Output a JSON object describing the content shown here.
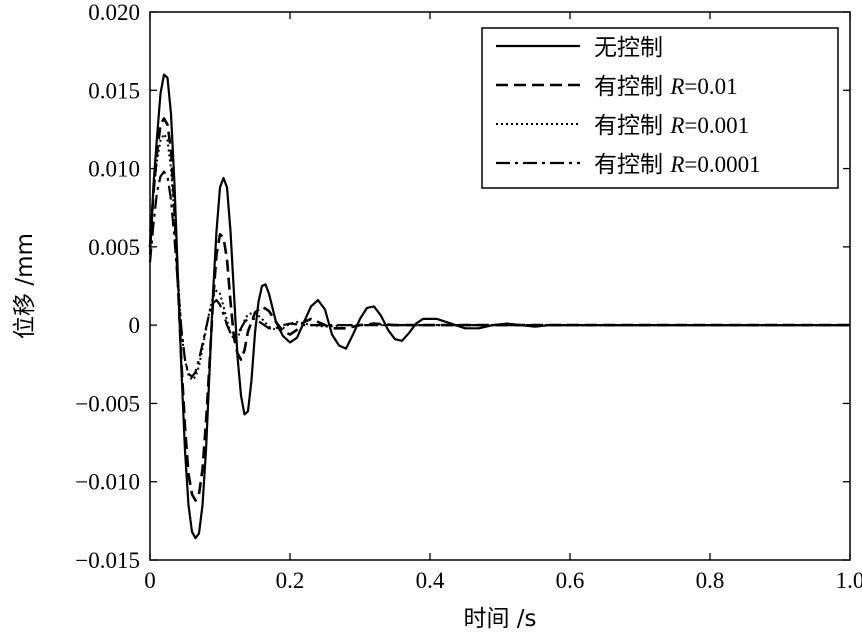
{
  "chart_data": {
    "type": "line",
    "xlabel": "时间 /s",
    "ylabel": "位移 /mm",
    "xlim": [
      0,
      1.0
    ],
    "ylim": [
      -0.015,
      0.02
    ],
    "x_ticks": [
      "0",
      "0.2",
      "0.4",
      "0.6",
      "0.8",
      "1.0"
    ],
    "y_ticks": [
      "0.020",
      "0.015",
      "0.010",
      "0.005",
      "0",
      "−0.005",
      "−0.010",
      "−0.015"
    ],
    "grid": false,
    "legend_position": "top-right",
    "series": [
      {
        "name": "无控制",
        "dash": "solid",
        "points": [
          [
            0,
            0.0045
          ],
          [
            0.005,
            0.009
          ],
          [
            0.01,
            0.012
          ],
          [
            0.015,
            0.0148
          ],
          [
            0.02,
            0.016
          ],
          [
            0.025,
            0.0158
          ],
          [
            0.03,
            0.0135
          ],
          [
            0.035,
            0.009
          ],
          [
            0.04,
            0.003
          ],
          [
            0.045,
            -0.003
          ],
          [
            0.05,
            -0.008
          ],
          [
            0.055,
            -0.0115
          ],
          [
            0.06,
            -0.0132
          ],
          [
            0.065,
            -0.0136
          ],
          [
            0.07,
            -0.0133
          ],
          [
            0.075,
            -0.0115
          ],
          [
            0.08,
            -0.008
          ],
          [
            0.085,
            -0.003
          ],
          [
            0.09,
            0.002
          ],
          [
            0.095,
            0.006
          ],
          [
            0.1,
            0.0088
          ],
          [
            0.105,
            0.0094
          ],
          [
            0.11,
            0.0088
          ],
          [
            0.115,
            0.006
          ],
          [
            0.12,
            0.002
          ],
          [
            0.125,
            -0.002
          ],
          [
            0.13,
            -0.0045
          ],
          [
            0.135,
            -0.0057
          ],
          [
            0.14,
            -0.0055
          ],
          [
            0.145,
            -0.0035
          ],
          [
            0.15,
            -0.0005
          ],
          [
            0.155,
            0.0015
          ],
          [
            0.16,
            0.0025
          ],
          [
            0.165,
            0.0026
          ],
          [
            0.17,
            0.002
          ],
          [
            0.18,
            0.0002
          ],
          [
            0.19,
            -0.0007
          ],
          [
            0.2,
            -0.0011
          ],
          [
            0.21,
            -0.0008
          ],
          [
            0.22,
            0.0002
          ],
          [
            0.23,
            0.0012
          ],
          [
            0.24,
            0.0016
          ],
          [
            0.25,
            0.001
          ],
          [
            0.26,
            -0.0006
          ],
          [
            0.27,
            -0.0013
          ],
          [
            0.28,
            -0.0015
          ],
          [
            0.29,
            -0.0006
          ],
          [
            0.3,
            0.0004
          ],
          [
            0.31,
            0.0011
          ],
          [
            0.32,
            0.0012
          ],
          [
            0.33,
            0.0006
          ],
          [
            0.34,
            -0.0003
          ],
          [
            0.35,
            -0.0009
          ],
          [
            0.36,
            -0.001
          ],
          [
            0.37,
            -0.0005
          ],
          [
            0.38,
            0.0001
          ],
          [
            0.39,
            0.0004
          ],
          [
            0.41,
            0.0004
          ],
          [
            0.43,
            0.0001
          ],
          [
            0.45,
            -0.0002
          ],
          [
            0.47,
            -0.0002
          ],
          [
            0.49,
            0
          ],
          [
            0.51,
            0.0001
          ],
          [
            0.53,
            0
          ],
          [
            0.55,
            -0.0001
          ],
          [
            0.57,
            0
          ],
          [
            0.6,
            0
          ],
          [
            0.65,
            0
          ],
          [
            0.7,
            0
          ],
          [
            0.8,
            0
          ],
          [
            0.9,
            0
          ],
          [
            1.0,
            0
          ]
        ]
      },
      {
        "name": "有控制 R=0.01",
        "dash": "12,6",
        "points": [
          [
            0,
            0.005
          ],
          [
            0.005,
            0.0085
          ],
          [
            0.01,
            0.011
          ],
          [
            0.015,
            0.0128
          ],
          [
            0.02,
            0.0132
          ],
          [
            0.025,
            0.0128
          ],
          [
            0.03,
            0.0112
          ],
          [
            0.035,
            0.0075
          ],
          [
            0.04,
            0.0025
          ],
          [
            0.045,
            -0.0025
          ],
          [
            0.05,
            -0.0065
          ],
          [
            0.055,
            -0.0095
          ],
          [
            0.06,
            -0.0108
          ],
          [
            0.065,
            -0.0112
          ],
          [
            0.07,
            -0.0108
          ],
          [
            0.075,
            -0.0092
          ],
          [
            0.08,
            -0.0062
          ],
          [
            0.085,
            -0.0025
          ],
          [
            0.09,
            0.0015
          ],
          [
            0.095,
            0.0045
          ],
          [
            0.1,
            0.0058
          ],
          [
            0.105,
            0.0056
          ],
          [
            0.11,
            0.0042
          ],
          [
            0.115,
            0.0015
          ],
          [
            0.12,
            -0.0008
          ],
          [
            0.125,
            -0.0018
          ],
          [
            0.13,
            -0.0022
          ],
          [
            0.135,
            -0.0016
          ],
          [
            0.14,
            -0.0004
          ],
          [
            0.15,
            0.0008
          ],
          [
            0.16,
            0.0012
          ],
          [
            0.17,
            0.0009
          ],
          [
            0.18,
            0.0002
          ],
          [
            0.19,
            -0.0004
          ],
          [
            0.2,
            -0.0006
          ],
          [
            0.21,
            -0.0003
          ],
          [
            0.22,
            0.0002
          ],
          [
            0.23,
            0.0004
          ],
          [
            0.24,
            0.0002
          ],
          [
            0.26,
            -0.0002
          ],
          [
            0.28,
            -0.0002
          ],
          [
            0.3,
            0
          ],
          [
            0.32,
            0.0001
          ],
          [
            0.35,
            0
          ],
          [
            0.4,
            0
          ],
          [
            0.5,
            0
          ],
          [
            0.6,
            0
          ],
          [
            0.7,
            0
          ],
          [
            0.8,
            0
          ],
          [
            0.9,
            0
          ],
          [
            1.0,
            0
          ]
        ]
      },
      {
        "name": "有控制 R=0.001",
        "dash": "2,3",
        "points": [
          [
            0,
            0.006
          ],
          [
            0.005,
            0.0085
          ],
          [
            0.01,
            0.0105
          ],
          [
            0.015,
            0.0118
          ],
          [
            0.02,
            0.0122
          ],
          [
            0.025,
            0.0118
          ],
          [
            0.03,
            0.01
          ],
          [
            0.035,
            0.0068
          ],
          [
            0.04,
            0.003
          ],
          [
            0.045,
            -0.0005
          ],
          [
            0.05,
            -0.0022
          ],
          [
            0.055,
            -0.0032
          ],
          [
            0.06,
            -0.0035
          ],
          [
            0.065,
            -0.0033
          ],
          [
            0.07,
            -0.0026
          ],
          [
            0.075,
            -0.0015
          ],
          [
            0.08,
            -0.0003
          ],
          [
            0.085,
            0.0009
          ],
          [
            0.09,
            0.0018
          ],
          [
            0.095,
            0.0022
          ],
          [
            0.1,
            0.002
          ],
          [
            0.105,
            0.0012
          ],
          [
            0.11,
            0.0003
          ],
          [
            0.115,
            -0.0005
          ],
          [
            0.12,
            -0.0009
          ],
          [
            0.125,
            -0.0008
          ],
          [
            0.13,
            -0.0003
          ],
          [
            0.135,
            0.0003
          ],
          [
            0.14,
            0.0007
          ],
          [
            0.15,
            0.0008
          ],
          [
            0.16,
            0.0004
          ],
          [
            0.17,
            -0.0001
          ],
          [
            0.18,
            -0.0003
          ],
          [
            0.19,
            -0.0002
          ],
          [
            0.2,
            0.0001
          ],
          [
            0.21,
            0.0002
          ],
          [
            0.23,
            0
          ],
          [
            0.25,
            -0.0001
          ],
          [
            0.28,
            0
          ],
          [
            0.32,
            0
          ],
          [
            0.4,
            0
          ],
          [
            0.5,
            0
          ],
          [
            0.6,
            0
          ],
          [
            0.7,
            0
          ],
          [
            0.8,
            0
          ],
          [
            0.9,
            0
          ],
          [
            1.0,
            0
          ]
        ]
      },
      {
        "name": "有控制 R=0.0001",
        "dash": "14,5,3,5",
        "points": [
          [
            0,
            0.004
          ],
          [
            0.005,
            0.0065
          ],
          [
            0.01,
            0.0085
          ],
          [
            0.015,
            0.0095
          ],
          [
            0.02,
            0.0098
          ],
          [
            0.025,
            0.0095
          ],
          [
            0.03,
            0.008
          ],
          [
            0.035,
            0.0055
          ],
          [
            0.04,
            0.0025
          ],
          [
            0.045,
            -0.0003
          ],
          [
            0.05,
            -0.0022
          ],
          [
            0.055,
            -0.0031
          ],
          [
            0.06,
            -0.0033
          ],
          [
            0.065,
            -0.003
          ],
          [
            0.07,
            -0.0022
          ],
          [
            0.075,
            -0.0012
          ],
          [
            0.08,
            -0.0002
          ],
          [
            0.085,
            0.0008
          ],
          [
            0.09,
            0.0014
          ],
          [
            0.095,
            0.0016
          ],
          [
            0.1,
            0.0013
          ],
          [
            0.105,
            0.0007
          ],
          [
            0.11,
            0
          ],
          [
            0.115,
            -0.0005
          ],
          [
            0.12,
            -0.0007
          ],
          [
            0.125,
            -0.0006
          ],
          [
            0.13,
            -0.0002
          ],
          [
            0.135,
            0.0002
          ],
          [
            0.14,
            0.0004
          ],
          [
            0.15,
            0.0004
          ],
          [
            0.16,
            0.0001
          ],
          [
            0.17,
            -0.0002
          ],
          [
            0.18,
            -0.0002
          ],
          [
            0.19,
            0
          ],
          [
            0.2,
            0.0001
          ],
          [
            0.22,
            0
          ],
          [
            0.25,
            0
          ],
          [
            0.3,
            0
          ],
          [
            0.4,
            0
          ],
          [
            0.5,
            0
          ],
          [
            0.6,
            0
          ],
          [
            0.7,
            0
          ],
          [
            0.8,
            0
          ],
          [
            0.9,
            0
          ],
          [
            1.0,
            0
          ]
        ]
      }
    ]
  },
  "legend": {
    "entries": [
      {
        "label": "无控制",
        "italic": "",
        "suffix": ""
      },
      {
        "label": "有控制 ",
        "italic": "R",
        "suffix": "=0.01"
      },
      {
        "label": "有控制 ",
        "italic": "R",
        "suffix": "=0.001"
      },
      {
        "label": "有控制 ",
        "italic": "R",
        "suffix": "=0.0001"
      }
    ]
  }
}
